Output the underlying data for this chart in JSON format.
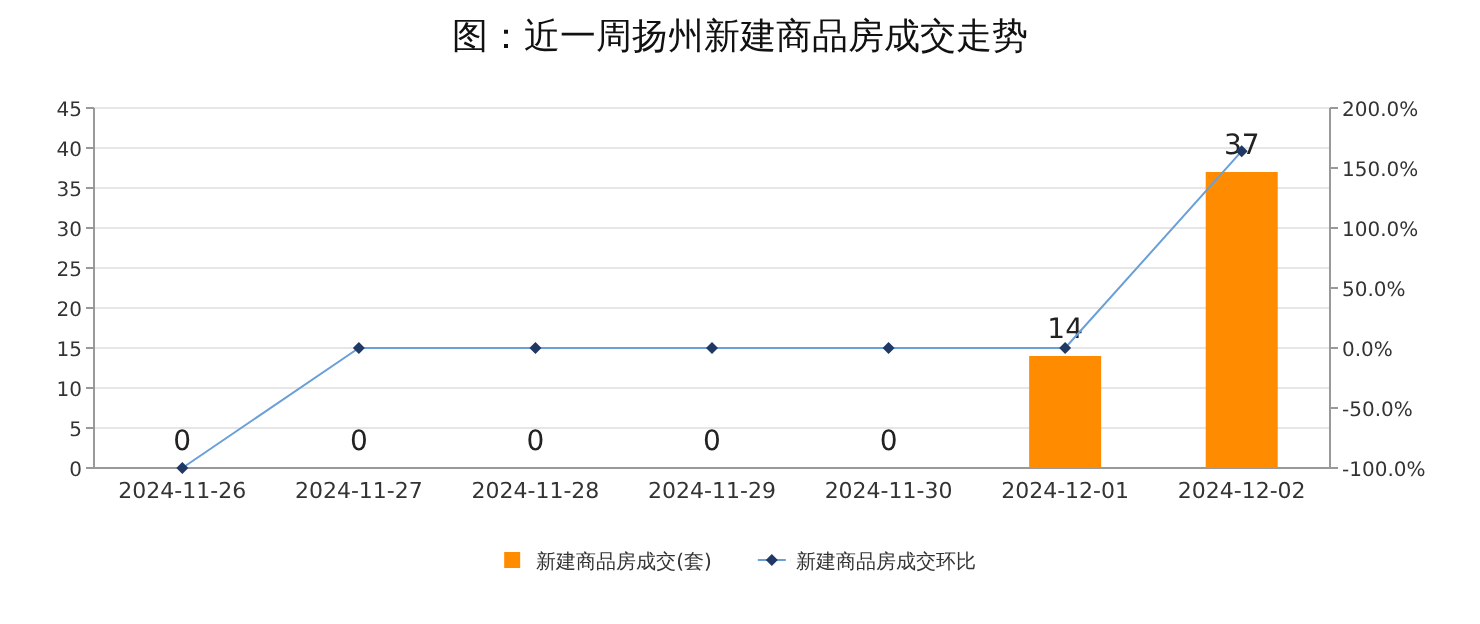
{
  "chart_data": {
    "type": "bar",
    "title": "图：近一周扬州新建商品房成交走势",
    "categories": [
      "2024-11-26",
      "2024-11-27",
      "2024-11-28",
      "2024-11-29",
      "2024-11-30",
      "2024-12-01",
      "2024-12-02"
    ],
    "series": [
      {
        "name": "新建商品房成交(套)",
        "color": "#ff8c00",
        "values": [
          0,
          0,
          0,
          0,
          0,
          14,
          37
        ],
        "value_labels": [
          "0",
          "0",
          "0",
          "0",
          "0",
          "14",
          "37"
        ]
      },
      {
        "name": "新建商品房成交环比",
        "type": "line",
        "axis": "y2",
        "color": "#6a9fd8",
        "marker": "diamond",
        "values": [
          -100,
          0,
          0,
          0,
          0,
          0,
          164
        ]
      }
    ],
    "ylim": [
      0,
      45
    ],
    "yticks": [
      0,
      5,
      10,
      15,
      20,
      25,
      30,
      35,
      40,
      45
    ],
    "y2lim": [
      -100,
      200
    ],
    "y2ticks": [
      {
        "value": -100,
        "label": "-100.0%"
      },
      {
        "value": -50,
        "label": "-50.0%"
      },
      {
        "value": 0,
        "label": "0.0%"
      },
      {
        "value": 50,
        "label": "50.0%"
      },
      {
        "value": 100,
        "label": "100.0%"
      },
      {
        "value": 150,
        "label": "150.0%"
      },
      {
        "value": 200,
        "label": "200.0%"
      }
    ],
    "grid": "y",
    "legend": "bottom"
  }
}
